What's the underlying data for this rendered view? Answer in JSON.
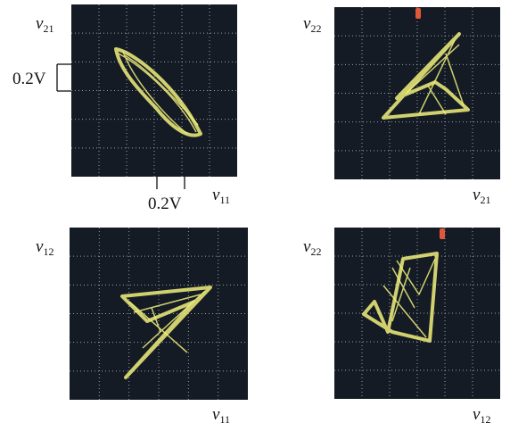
{
  "panels": [
    {
      "y_label": {
        "symbol": "v",
        "subscript": "21"
      },
      "x_label": {
        "symbol": "v",
        "subscript": "11"
      },
      "y_scale": "0.2V",
      "x_scale": "0.2V"
    },
    {
      "y_label": {
        "symbol": "v",
        "subscript": "22"
      },
      "x_label": {
        "symbol": "v",
        "subscript": "21"
      }
    },
    {
      "y_label": {
        "symbol": "v",
        "subscript": "12"
      },
      "x_label": {
        "symbol": "v",
        "subscript": "11"
      }
    },
    {
      "y_label": {
        "symbol": "v",
        "subscript": "22"
      },
      "x_label": {
        "symbol": "v",
        "subscript": "12"
      }
    }
  ]
}
